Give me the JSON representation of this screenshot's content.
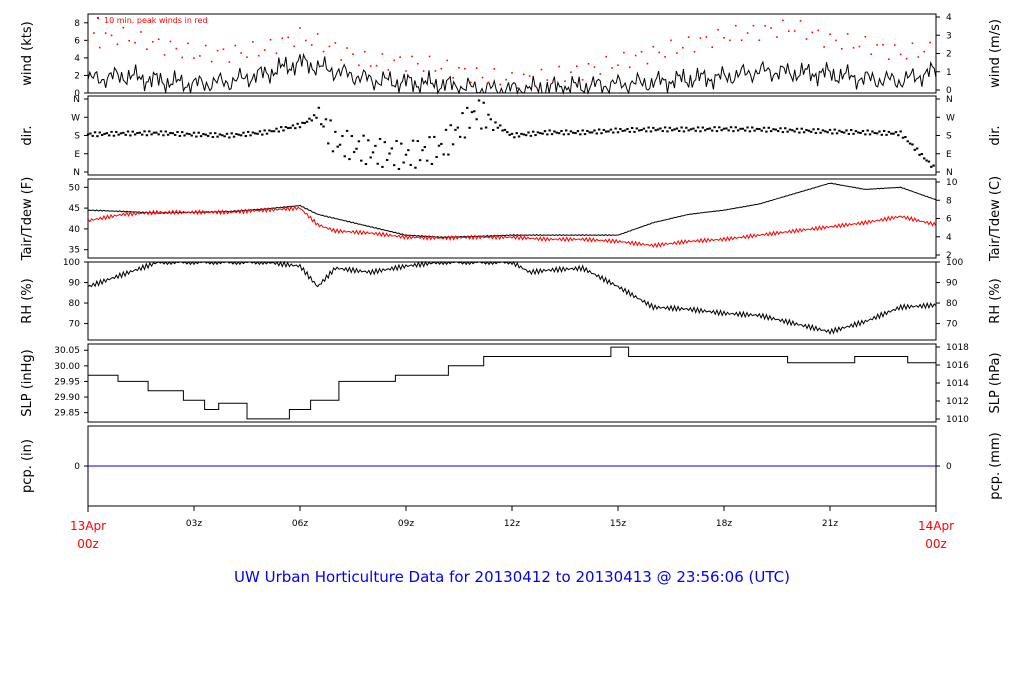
{
  "title": "UW Urban Horticulture Data for 20130412  to  20130413 @ 23:56:06  (UTC)",
  "colors": {
    "title": "#0000ff",
    "observed": "#000000",
    "secondary": "#ff0000",
    "precip": "#0000ff",
    "axis": "#000000"
  },
  "time_axis": {
    "start": {
      "date": "13Apr",
      "hour": "00z"
    },
    "end": {
      "date": "14Apr",
      "hour": "00z"
    },
    "ticks": [
      "03z",
      "06z",
      "09z",
      "12z",
      "15z",
      "18z",
      "21z"
    ]
  },
  "chart_data": [
    {
      "type": "line",
      "name": "wind",
      "ylabel_left": "wind (kts)",
      "ylabel_right": "wind (m/s)",
      "ylim": [
        0,
        9
      ],
      "yticks_left": [
        "0",
        "2",
        "4",
        "6",
        "8"
      ],
      "yticks_right": [
        "0",
        "1",
        "2",
        "3",
        "4"
      ],
      "annotation": "10 min. peak winds in red",
      "x_hours": [
        0,
        1,
        2,
        3,
        4,
        5,
        6,
        7,
        8,
        9,
        10,
        11,
        12,
        13,
        14,
        15,
        16,
        17,
        18,
        19,
        20,
        21,
        22,
        23,
        24
      ],
      "series": [
        {
          "values": [
            1.5,
            2.0,
            1.4,
            1.0,
            1.3,
            2.2,
            3.5,
            2.5,
            1.5,
            1.2,
            1.0,
            0.5,
            0.4,
            0.6,
            0.8,
            1.0,
            1.2,
            1.6,
            1.8,
            2.5,
            2.3,
            2.2,
            1.6,
            1.4,
            2.5
          ]
        },
        {
          "values": [
            6,
            6.5,
            5.5,
            4.5,
            4.5,
            5,
            6.5,
            5,
            3.5,
            3.5,
            3,
            2,
            1.5,
            1.8,
            2.5,
            3.5,
            4.5,
            5.5,
            6.5,
            7,
            7.5,
            6,
            5.5,
            4.5,
            5
          ]
        }
      ]
    },
    {
      "type": "scatter",
      "name": "dir",
      "ylabel_left": "dir.",
      "ylabel_right": "dir.",
      "yticks_left": [
        "N",
        "E",
        "S",
        "W",
        "N"
      ],
      "yticks_right": [
        "N",
        "E",
        "S",
        "W",
        "N"
      ],
      "ylim": [
        0,
        360
      ],
      "x_hours": [
        0,
        1,
        2,
        3,
        4,
        5,
        6,
        6.5,
        7,
        8,
        9,
        10,
        11,
        12,
        13,
        14,
        15,
        16,
        17,
        18,
        19,
        20,
        21,
        22,
        23,
        24
      ],
      "series": [
        {
          "values": [
            185,
            190,
            192,
            185,
            180,
            195,
            230,
            280,
            150,
            100,
            80,
            120,
            300,
            180,
            195,
            195,
            205,
            210,
            210,
            212,
            210,
            205,
            200,
            195,
            190,
            10
          ]
        }
      ]
    },
    {
      "type": "line",
      "name": "temperature",
      "ylabel_left": "Tair/Tdew (F)",
      "ylabel_right": "Tair/Tdew (C)",
      "ylim": [
        33,
        52
      ],
      "yticks_left": [
        "35",
        "40",
        "45",
        "50"
      ],
      "yticks_right": [
        "2",
        "4",
        "6",
        "8",
        "10"
      ],
      "x_hours": [
        0,
        1,
        2,
        3,
        4,
        5,
        6,
        6.5,
        7,
        8,
        9,
        10,
        11,
        12,
        13,
        14,
        15,
        16,
        17,
        18,
        19,
        20,
        21,
        22,
        23,
        24
      ],
      "series": [
        {
          "name": "Tair",
          "values": [
            44.5,
            44.2,
            43.8,
            44.0,
            44.2,
            44.8,
            45.6,
            43.5,
            42.5,
            40.5,
            38.5,
            38.0,
            38.2,
            38.5,
            38.5,
            38.5,
            38.5,
            41.5,
            43.5,
            44.5,
            46.0,
            48.5,
            51.0,
            49.5,
            50.0,
            47.0
          ]
        },
        {
          "name": "Tdew",
          "values": [
            42.0,
            43.5,
            44.0,
            44.0,
            44.0,
            44.5,
            45.0,
            41.0,
            39.5,
            39.0,
            38.0,
            37.8,
            38.0,
            38.0,
            37.5,
            37.5,
            37.0,
            36.0,
            37.0,
            37.5,
            38.5,
            39.5,
            40.5,
            41.5,
            43.0,
            41.0
          ]
        }
      ]
    },
    {
      "type": "line",
      "name": "rh",
      "ylabel_left": "RH (%)",
      "ylabel_right": "RH (%)",
      "ylim": [
        62,
        100
      ],
      "yticks_left": [
        "70",
        "80",
        "90",
        "100"
      ],
      "yticks_right": [
        "70",
        "80",
        "90",
        "100"
      ],
      "x_hours": [
        0,
        1,
        2,
        3,
        4,
        5,
        6,
        6.5,
        7,
        8,
        9,
        10,
        11,
        12,
        12.5,
        13,
        14,
        15,
        16,
        17,
        18,
        19,
        20,
        21,
        22,
        23,
        24
      ],
      "series": [
        {
          "values": [
            88,
            94,
            100,
            100,
            100,
            100,
            98,
            88,
            97,
            95,
            98,
            100,
            100,
            100,
            95,
            96,
            97,
            88,
            78,
            77,
            75,
            74,
            70,
            66,
            71,
            78,
            79
          ]
        }
      ]
    },
    {
      "type": "line",
      "name": "slp",
      "ylabel_left": "SLP (inHg)",
      "ylabel_right": "SLP (hPa)",
      "ylim": [
        29.82,
        30.07
      ],
      "yticks_left": [
        "29.85",
        "29.90",
        "29.95",
        "30.00",
        "30.05"
      ],
      "yticks_right": [
        "1010",
        "1012",
        "1014",
        "1016",
        "1018"
      ],
      "x_hours": [
        0,
        0.85,
        1.7,
        2.7,
        3.3,
        3.7,
        4.5,
        5.7,
        6.3,
        7.1,
        8.7,
        10.2,
        11.2,
        13.8,
        14.8,
        15.3,
        19.8,
        21.7,
        23.2,
        24
      ],
      "series": [
        {
          "values": [
            29.97,
            29.95,
            29.92,
            29.89,
            29.86,
            29.88,
            29.83,
            29.86,
            29.89,
            29.95,
            29.97,
            30.0,
            30.03,
            30.03,
            30.06,
            30.03,
            30.01,
            30.03,
            30.01,
            30.03
          ]
        }
      ]
    },
    {
      "type": "line",
      "name": "precip",
      "ylabel_left": "pcp. (in)",
      "ylabel_right": "pcp. (mm)",
      "yticks_left": [
        "0"
      ],
      "yticks_right": [
        "0"
      ],
      "x_hours": [
        0,
        24
      ],
      "series": [
        {
          "values": [
            0,
            0
          ]
        }
      ]
    }
  ]
}
